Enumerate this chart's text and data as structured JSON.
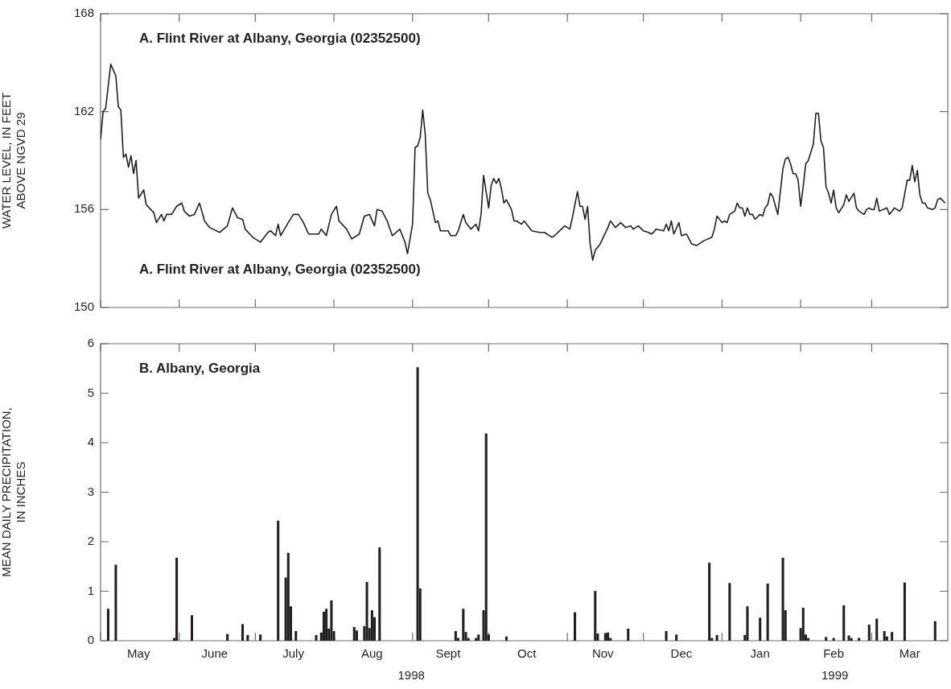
{
  "chart_data": [
    {
      "type": "line",
      "title": "A. Flint River at Albany, Georgia (02352500)",
      "ylabel": "WATER LEVEL, IN FEET\nABOVE NGVD 29",
      "annotations": [
        "A. Flint River at Albany, Georgia (02352500)"
      ],
      "xlim": [
        "1998-05-01",
        "1999-03-31"
      ],
      "xticks": [
        {
          "value": "1998-05-01",
          "label": null
        },
        {
          "value": "1998-06-01",
          "label": null
        },
        {
          "value": "1998-07-01",
          "label": null
        },
        {
          "value": "1998-08-01",
          "label": null
        },
        {
          "value": "1998-09-01",
          "label": null
        },
        {
          "value": "1998-10-01",
          "label": null
        },
        {
          "value": "1998-11-01",
          "label": null
        },
        {
          "value": "1998-12-01",
          "label": null
        },
        {
          "value": "1999-01-01",
          "label": null
        },
        {
          "value": "1999-02-01",
          "label": null
        },
        {
          "value": "1999-03-01",
          "label": null
        }
      ],
      "ylim": [
        150,
        168
      ],
      "yticks": [
        150,
        156,
        162,
        168
      ],
      "tick_labels": "y",
      "series": [
        {
          "color": "#231f20",
          "x": [
            "1998-05-01",
            "1998-05-02",
            "1998-05-03",
            "1998-05-05",
            "1998-05-07",
            "1998-05-08",
            "1998-05-09",
            "1998-05-10",
            "1998-05-11",
            "1998-05-12",
            "1998-05-13",
            "1998-05-14",
            "1998-05-15",
            "1998-05-16",
            "1998-05-18",
            "1998-05-19",
            "1998-05-22",
            "1998-05-23",
            "1998-05-25",
            "1998-05-26",
            "1998-05-27",
            "1998-05-29",
            "1998-05-31",
            "1998-06-02",
            "1998-06-03",
            "1998-06-05",
            "1998-06-07",
            "1998-06-09",
            "1998-06-11",
            "1998-06-13",
            "1998-06-17",
            "1998-06-20",
            "1998-06-22",
            "1998-06-24",
            "1998-06-26",
            "1998-06-27",
            "1998-06-30",
            "1998-07-03",
            "1998-07-06",
            "1998-07-07",
            "1998-07-09",
            "1998-07-10",
            "1998-07-11",
            "1998-07-14",
            "1998-07-16",
            "1998-07-18",
            "1998-07-20",
            "1998-07-22",
            "1998-07-26",
            "1998-07-27",
            "1998-07-29",
            "1998-07-31",
            "1998-08-02",
            "1998-08-03",
            "1998-08-06",
            "1998-08-08",
            "1998-08-11",
            "1998-08-13",
            "1998-08-15",
            "1998-08-17",
            "1998-08-18",
            "1998-08-20",
            "1998-08-22",
            "1998-08-24",
            "1998-08-27",
            "1998-08-28",
            "1998-08-29",
            "1998-08-30",
            "1998-09-01",
            "1998-09-02",
            "1998-09-03",
            "1998-09-04",
            "1998-09-05",
            "1998-09-06",
            "1998-09-07",
            "1998-09-08",
            "1998-09-10",
            "1998-09-11",
            "1998-09-12",
            "1998-09-15",
            "1998-09-16",
            "1998-09-18",
            "1998-09-19",
            "1998-09-21",
            "1998-09-22",
            "1998-09-24",
            "1998-09-26",
            "1998-09-27",
            "1998-09-28",
            "1998-09-29",
            "1998-10-01",
            "1998-10-02",
            "1998-10-03",
            "1998-10-04",
            "1998-10-05",
            "1998-10-06",
            "1998-10-07",
            "1998-10-08",
            "1998-10-10",
            "1998-10-11",
            "1998-10-12",
            "1998-10-14",
            "1998-10-15",
            "1998-10-18",
            "1998-10-21",
            "1998-10-23",
            "1998-10-26",
            "1998-10-27",
            "1998-10-29",
            "1998-10-31",
            "1998-11-02",
            "1998-11-03",
            "1998-11-05",
            "1998-11-06",
            "1998-11-07",
            "1998-11-08",
            "1998-11-09",
            "1998-11-10",
            "1998-11-11",
            "1998-11-12",
            "1998-11-14",
            "1998-11-17",
            "1998-11-18",
            "1998-11-20",
            "1998-11-22",
            "1998-11-24",
            "1998-11-26",
            "1998-11-27",
            "1998-11-29",
            "1998-12-01",
            "1998-12-03",
            "1998-12-04",
            "1998-12-05",
            "1998-12-06",
            "1998-12-09",
            "1998-12-10",
            "1998-12-11",
            "1998-12-12",
            "1998-12-13",
            "1998-12-15",
            "1998-12-16",
            "1998-12-18",
            "1998-12-20",
            "1998-12-22",
            "1998-12-25",
            "1998-12-28",
            "1998-12-29",
            "1998-12-30",
            "1999-01-01",
            "1999-01-02",
            "1999-01-03",
            "1999-01-04",
            "1999-01-06",
            "1999-01-07",
            "1999-01-08",
            "1999-01-09",
            "1999-01-10",
            "1999-01-11",
            "1999-01-12",
            "1999-01-13",
            "1999-01-14",
            "1999-01-16",
            "1999-01-17",
            "1999-01-18",
            "1999-01-19",
            "1999-01-20",
            "1999-01-21",
            "1999-01-23",
            "1999-01-25",
            "1999-01-26",
            "1999-01-27",
            "1999-01-28",
            "1999-01-29",
            "1999-01-30",
            "1999-01-31",
            "1999-02-01",
            "1999-02-02",
            "1999-02-03",
            "1999-02-04",
            "1999-02-05",
            "1999-02-06",
            "1999-02-07",
            "1999-02-08",
            "1999-02-09",
            "1999-02-10",
            "1999-02-11",
            "1999-02-12",
            "1999-02-13",
            "1999-02-14",
            "1999-02-15",
            "1999-02-16",
            "1999-02-18",
            "1999-02-19",
            "1999-02-20",
            "1999-02-22",
            "1999-02-23",
            "1999-02-24",
            "1999-02-26",
            "1999-02-27",
            "1999-02-28",
            "1999-03-01",
            "1999-03-02",
            "1999-03-03",
            "1999-03-04",
            "1999-03-07",
            "1999-03-08",
            "1999-03-10",
            "1999-03-12",
            "1999-03-13",
            "1999-03-15",
            "1999-03-16",
            "1999-03-17",
            "1999-03-18",
            "1999-03-19",
            "1999-03-20",
            "1999-03-21",
            "1999-03-22",
            "1999-03-23",
            "1999-03-25",
            "1999-03-26",
            "1999-03-27",
            "1999-03-28",
            "1999-03-30"
          ],
          "values": [
            160.3,
            162.0,
            162.2,
            164.9,
            164.2,
            162.3,
            162.1,
            159.2,
            159.4,
            158.6,
            159.3,
            158.2,
            159.0,
            156.7,
            157.2,
            156.3,
            155.8,
            155.2,
            155.7,
            155.3,
            155.7,
            155.7,
            156.2,
            156.4,
            155.9,
            155.6,
            155.7,
            156.4,
            155.3,
            154.9,
            154.6,
            155.0,
            156.1,
            155.5,
            155.4,
            154.8,
            154.3,
            154.0,
            154.6,
            154.7,
            154.4,
            155.1,
            154.4,
            155.2,
            155.7,
            155.7,
            155.2,
            154.5,
            154.5,
            154.8,
            154.4,
            155.7,
            156.2,
            155.3,
            154.8,
            154.2,
            154.5,
            155.6,
            155.7,
            155.0,
            156.0,
            155.9,
            155.3,
            154.4,
            154.8,
            154.4,
            154.0,
            153.3,
            155.1,
            159.8,
            159.9,
            160.4,
            162.1,
            160.6,
            157.0,
            156.6,
            155.2,
            155.3,
            154.7,
            154.7,
            154.4,
            154.4,
            154.7,
            155.7,
            155.2,
            154.8,
            155.1,
            154.7,
            155.7,
            158.1,
            156.1,
            157.5,
            157.9,
            157.6,
            157.9,
            157.3,
            156.4,
            156.6,
            156.0,
            155.3,
            155.3,
            155.1,
            155.3,
            154.7,
            154.6,
            154.6,
            154.3,
            154.4,
            154.7,
            155.0,
            154.8,
            155.5,
            157.1,
            156.2,
            156.2,
            155.4,
            156.2,
            153.9,
            152.9,
            153.5,
            153.9,
            154.9,
            155.3,
            154.9,
            155.2,
            154.9,
            155.0,
            154.8,
            155.0,
            154.7,
            154.6,
            154.5,
            154.6,
            154.8,
            154.7,
            155.1,
            154.7,
            155.3,
            154.5,
            155.2,
            154.4,
            154.5,
            153.9,
            153.8,
            154.1,
            154.3,
            154.8,
            155.6,
            155.2,
            155.3,
            155.2,
            155.7,
            155.9,
            156.4,
            156.1,
            156.1,
            155.6,
            156.1,
            155.7,
            155.7,
            155.4,
            155.7,
            155.6,
            156.1,
            156.3,
            157.0,
            156.8,
            155.7,
            158.5,
            159.1,
            159.2,
            158.8,
            158.2,
            158.2,
            157.8,
            156.2,
            157.4,
            158.8,
            159.0,
            159.5,
            160.0,
            161.9,
            161.9,
            160.2,
            159.8,
            157.4,
            157.0,
            156.4,
            157.2,
            156.1,
            155.8,
            156.3,
            156.9,
            156.5,
            157.0,
            156.1,
            155.9,
            155.7,
            156.0,
            156.1,
            156.0,
            156.0,
            156.7,
            155.9,
            156.1,
            155.7,
            156.1,
            155.9,
            156.1,
            157.8,
            157.8,
            158.7,
            157.7,
            158.4,
            156.9,
            156.4,
            156.4,
            156.1,
            156.0,
            156.1,
            156.6,
            156.7,
            156.4
          ]
        }
      ]
    },
    {
      "type": "bar",
      "title": "B. Albany, Georgia",
      "ylabel": "MEAN DAILY PRECIPITATION,\nIN INCHES",
      "annotations": [
        "1998",
        "1999"
      ],
      "xlim": [
        "1998-05-01",
        "1999-03-31"
      ],
      "xticks": [
        {
          "value": "1998-05-01",
          "label": null
        },
        {
          "value": "1998-05-16",
          "label": "May"
        },
        {
          "value": "1998-06-01",
          "label": null
        },
        {
          "value": "1998-06-15",
          "label": "June"
        },
        {
          "value": "1998-07-01",
          "label": null
        },
        {
          "value": "1998-07-16",
          "label": "July"
        },
        {
          "value": "1998-08-01",
          "label": null
        },
        {
          "value": "1998-08-16",
          "label": "Aug"
        },
        {
          "value": "1998-09-01",
          "label": null
        },
        {
          "value": "1998-09-15",
          "label": "Sept"
        },
        {
          "value": "1998-10-01",
          "label": null
        },
        {
          "value": "1998-10-16",
          "label": "Oct"
        },
        {
          "value": "1998-11-01",
          "label": null
        },
        {
          "value": "1998-11-15",
          "label": "Nov"
        },
        {
          "value": "1998-12-01",
          "label": null
        },
        {
          "value": "1998-12-16",
          "label": "Dec"
        },
        {
          "value": "1999-01-01",
          "label": null
        },
        {
          "value": "1999-01-16",
          "label": "Jan"
        },
        {
          "value": "1999-02-01",
          "label": null
        },
        {
          "value": "1999-02-14",
          "label": "Feb"
        },
        {
          "value": "1999-03-01",
          "label": null
        },
        {
          "value": "1999-03-16",
          "label": "Mar"
        }
      ],
      "ylim": [
        0,
        6
      ],
      "yticks": [
        0,
        1,
        2,
        3,
        4,
        5,
        6
      ],
      "series": [
        {
          "color": "#231f20",
          "x": [
            "1998-05-04",
            "1998-05-07",
            "1998-05-30",
            "1998-05-31",
            "1998-06-06",
            "1998-06-20",
            "1998-06-26",
            "1998-06-28",
            "1998-07-03",
            "1998-07-10",
            "1998-07-13",
            "1998-07-14",
            "1998-07-15",
            "1998-07-17",
            "1998-07-25",
            "1998-07-27",
            "1998-07-28",
            "1998-07-29",
            "1998-07-30",
            "1998-07-31",
            "1998-08-01",
            "1998-08-09",
            "1998-08-10",
            "1998-08-13",
            "1998-08-14",
            "1998-08-15",
            "1998-08-16",
            "1998-08-17",
            "1998-08-19",
            "1998-09-03",
            "1998-09-04",
            "1998-09-18",
            "1998-09-19",
            "1998-09-21",
            "1998-09-22",
            "1998-09-23",
            "1998-09-26",
            "1998-09-27",
            "1998-09-29",
            "1998-09-30",
            "1998-10-01",
            "1998-10-08",
            "1998-11-04",
            "1998-11-12",
            "1998-11-13",
            "1998-11-16",
            "1998-11-17",
            "1998-11-18",
            "1998-11-25",
            "1998-12-10",
            "1998-12-14",
            "1998-12-27",
            "1998-12-28",
            "1998-12-30",
            "1999-01-04",
            "1999-01-10",
            "1999-01-11",
            "1999-01-16",
            "1999-01-19",
            "1999-01-25",
            "1999-01-26",
            "1999-02-01",
            "1999-02-02",
            "1999-02-03",
            "1999-02-04",
            "1999-02-11",
            "1999-02-14",
            "1999-02-18",
            "1999-02-20",
            "1999-02-21",
            "1999-02-24",
            "1999-02-28",
            "1999-03-03",
            "1999-03-06",
            "1999-03-07",
            "1999-03-09",
            "1999-03-14",
            "1999-03-26"
          ],
          "values": [
            0.64,
            1.53,
            0.05,
            1.67,
            0.51,
            0.13,
            0.33,
            0.11,
            0.12,
            2.42,
            1.27,
            1.77,
            0.69,
            0.19,
            0.11,
            0.16,
            0.58,
            0.64,
            0.24,
            0.81,
            0.19,
            0.27,
            0.2,
            0.29,
            1.18,
            0.25,
            0.61,
            0.47,
            1.88,
            5.52,
            1.05,
            0.19,
            0.05,
            0.64,
            0.17,
            0.05,
            0.05,
            0.12,
            0.61,
            4.18,
            0.12,
            0.08,
            0.57,
            1.0,
            0.14,
            0.15,
            0.16,
            0.05,
            0.24,
            0.19,
            0.12,
            1.57,
            0.05,
            0.11,
            1.16,
            0.11,
            0.69,
            0.46,
            1.15,
            1.67,
            0.61,
            0.25,
            0.66,
            0.12,
            0.05,
            0.07,
            0.05,
            0.71,
            0.1,
            0.05,
            0.05,
            0.32,
            0.44,
            0.19,
            0.08,
            0.17,
            1.17,
            0.39
          ]
        }
      ]
    }
  ]
}
